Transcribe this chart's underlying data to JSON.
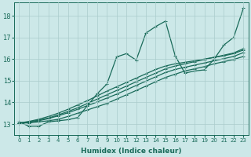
{
  "xlabel": "Humidex (Indice chaleur)",
  "bg_color": "#cce8e8",
  "grid_color": "#aacccc",
  "line_color": "#1a6b5a",
  "xlim": [
    -0.5,
    23.5
  ],
  "ylim": [
    12.5,
    18.6
  ],
  "yticks": [
    13,
    14,
    15,
    16,
    17,
    18
  ],
  "xticks": [
    0,
    1,
    2,
    3,
    4,
    5,
    6,
    7,
    8,
    9,
    10,
    11,
    12,
    13,
    14,
    15,
    16,
    17,
    18,
    19,
    20,
    21,
    22,
    23
  ],
  "zigzag": [
    13.1,
    12.9,
    12.9,
    13.1,
    13.15,
    13.2,
    13.3,
    13.85,
    14.4,
    14.85,
    16.1,
    16.25,
    15.95,
    17.2,
    17.5,
    17.75,
    16.15,
    15.35,
    15.45,
    15.5,
    16.0,
    16.65,
    17.0,
    18.35
  ],
  "trend_lines": [
    [
      13.05,
      13.05,
      13.1,
      13.15,
      13.22,
      13.35,
      13.5,
      13.65,
      13.8,
      13.95,
      14.15,
      14.35,
      14.55,
      14.75,
      14.95,
      15.15,
      15.3,
      15.45,
      15.55,
      15.65,
      15.78,
      15.88,
      15.98,
      16.12
    ],
    [
      13.05,
      13.08,
      13.15,
      13.25,
      13.38,
      13.52,
      13.68,
      13.85,
      14.02,
      14.2,
      14.38,
      14.58,
      14.78,
      14.98,
      15.18,
      15.38,
      15.52,
      15.62,
      15.72,
      15.82,
      15.92,
      16.02,
      16.12,
      16.3
    ],
    [
      13.05,
      13.1,
      13.18,
      13.28,
      13.42,
      13.58,
      13.75,
      13.95,
      14.15,
      14.35,
      14.55,
      14.75,
      14.95,
      15.15,
      15.35,
      15.55,
      15.68,
      15.78,
      15.88,
      15.98,
      16.08,
      16.18,
      16.28,
      16.48
    ],
    [
      13.05,
      13.12,
      13.22,
      13.35,
      13.5,
      13.68,
      13.88,
      14.08,
      14.3,
      14.52,
      14.72,
      14.92,
      15.12,
      15.32,
      15.52,
      15.68,
      15.78,
      15.85,
      15.92,
      16.0,
      16.08,
      16.15,
      16.25,
      16.42
    ]
  ],
  "marker": "+",
  "markersize": 3.5,
  "linewidth": 0.9
}
